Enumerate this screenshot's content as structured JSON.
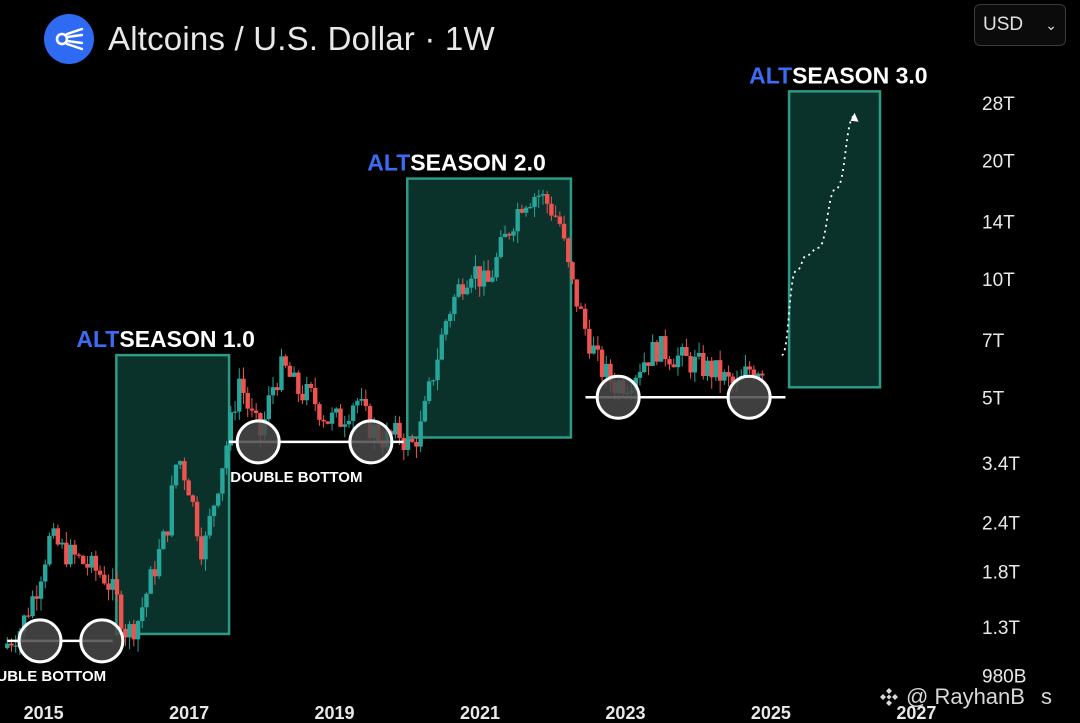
{
  "header": {
    "title": "Altcoins / U.S. Dollar · 1W"
  },
  "currency_select": {
    "value": "USD"
  },
  "watermark": {
    "text": "@ RayhanB",
    "suffix": "s"
  },
  "colors": {
    "up": "#26a69a",
    "down": "#ef5350",
    "zone_fill": "#0c3b33",
    "zone_border": "#2b9b86",
    "alt_blue": "#3b6cf6",
    "circle_fill": "#4a4a4a"
  },
  "chart_data": {
    "type": "candlestick",
    "title": "Altcoins / U.S. Dollar · 1W",
    "y_scale": "log",
    "ylim": [
      0.9,
      34
    ],
    "y_unit": "T USD",
    "y_tick_labels": [
      "28T",
      "20T",
      "14T",
      "10T",
      "7T",
      "5T",
      "3.4T",
      "2.4T",
      "1.8T",
      "1.3T",
      "980B"
    ],
    "y_tick_values": [
      28,
      20,
      14,
      10,
      7,
      5,
      3.4,
      2.4,
      1.8,
      1.3,
      0.98
    ],
    "x_tick_labels": [
      "2015",
      "2017",
      "2019",
      "2021",
      "2023",
      "2025",
      "2027"
    ],
    "xlim": [
      2014.4,
      2027.6
    ],
    "price_path": [
      [
        2014.5,
        1.15
      ],
      [
        2014.75,
        1.3
      ],
      [
        2014.95,
        1.62
      ],
      [
        2015.15,
        2.2
      ],
      [
        2015.3,
        2.05
      ],
      [
        2015.5,
        1.95
      ],
      [
        2015.7,
        1.85
      ],
      [
        2015.9,
        1.75
      ],
      [
        2016.05,
        1.55
      ],
      [
        2016.2,
        1.25
      ],
      [
        2016.35,
        1.35
      ],
      [
        2016.5,
        1.65
      ],
      [
        2016.75,
        2.3
      ],
      [
        2016.9,
        3.6
      ],
      [
        2017.05,
        3.0
      ],
      [
        2017.25,
        2.0
      ],
      [
        2017.45,
        3.0
      ],
      [
        2017.6,
        4.0
      ],
      [
        2017.75,
        5.6
      ],
      [
        2017.9,
        4.5
      ],
      [
        2018.05,
        4.0
      ],
      [
        2018.2,
        5.3
      ],
      [
        2018.35,
        6.0
      ],
      [
        2018.55,
        5.2
      ],
      [
        2018.75,
        5.0
      ],
      [
        2018.95,
        4.4
      ],
      [
        2019.15,
        4.4
      ],
      [
        2019.35,
        5.0
      ],
      [
        2019.55,
        4.2
      ],
      [
        2019.75,
        3.9
      ],
      [
        2019.95,
        4.05
      ],
      [
        2020.1,
        3.7
      ],
      [
        2020.25,
        4.2
      ],
      [
        2020.4,
        5.6
      ],
      [
        2020.6,
        8.0
      ],
      [
        2020.8,
        9.8
      ],
      [
        2020.95,
        10.8
      ],
      [
        2021.15,
        9.5
      ],
      [
        2021.35,
        12.0
      ],
      [
        2021.5,
        14.0
      ],
      [
        2021.65,
        16.0
      ],
      [
        2021.85,
        16.5
      ],
      [
        2022.0,
        15.5
      ],
      [
        2022.15,
        14.0
      ],
      [
        2022.3,
        10.0
      ],
      [
        2022.5,
        7.5
      ],
      [
        2022.7,
        6.0
      ],
      [
        2022.9,
        5.4
      ],
      [
        2023.1,
        5.5
      ],
      [
        2023.3,
        6.2
      ],
      [
        2023.5,
        6.7
      ],
      [
        2023.7,
        6.4
      ],
      [
        2023.9,
        6.2
      ],
      [
        2024.1,
        6.0
      ],
      [
        2024.3,
        5.8
      ],
      [
        2024.45,
        5.5
      ],
      [
        2024.6,
        5.3
      ],
      [
        2024.75,
        5.9
      ],
      [
        2024.9,
        6.0
      ]
    ],
    "projection": [
      [
        2025.15,
        6.4
      ],
      [
        2025.35,
        10.5
      ],
      [
        2025.5,
        11.5
      ],
      [
        2025.65,
        12.0
      ],
      [
        2025.9,
        17.0
      ],
      [
        2026.15,
        26.0
      ]
    ],
    "zones": [
      {
        "label_prefix": "ALT",
        "label_rest": "SEASON 1.0",
        "x0": 2016.0,
        "x1": 2017.55,
        "y0": 1.25,
        "y1": 6.4
      },
      {
        "label_prefix": "ALT",
        "label_rest": "SEASON 2.0",
        "x0": 2020.0,
        "x1": 2022.25,
        "y0": 3.95,
        "y1": 18.0
      },
      {
        "label_prefix": "ALT",
        "label_rest": "SEASON 3.0",
        "x0": 2025.25,
        "x1": 2026.5,
        "y0": 5.3,
        "y1": 30.0
      }
    ],
    "bottoms": [
      {
        "label": "DOUBLE BOTTOM",
        "x0": 2014.5,
        "x1": 2015.95,
        "y": 1.2,
        "circles": [
          2014.95,
          2015.8
        ]
      },
      {
        "label": "DOUBLE BOTTOM",
        "x0": 2017.55,
        "x1": 2019.95,
        "y": 3.85,
        "circles": [
          2017.95,
          2019.5
        ]
      },
      {
        "label": "",
        "x0": 2022.45,
        "x1": 2025.2,
        "y": 5.0,
        "circles": [
          2022.9,
          2024.7
        ]
      }
    ]
  }
}
